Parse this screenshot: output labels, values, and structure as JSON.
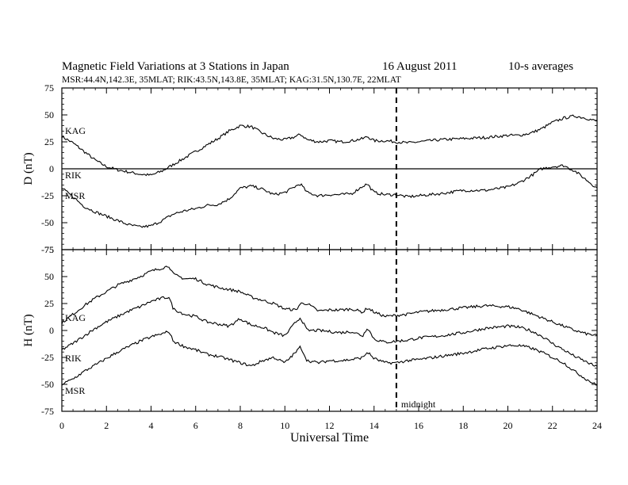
{
  "header": {
    "title": "Magnetic Field Variations at 3 Stations in Japan",
    "date": "16  August  2011",
    "averaging": "10-s averages",
    "stations": "MSR:44.4N,142.3E, 35MLAT;  RIK:43.5N,143.8E, 35MLAT;  KAG:31.5N,130.7E, 22MLAT"
  },
  "annotations": {
    "midnight_label": "midnight",
    "midnight_ut": 15
  },
  "chart_data": [
    {
      "type": "line",
      "panel": "top",
      "ylabel": "D (nT)",
      "ylim": [
        -75,
        75
      ],
      "yticks": [
        75,
        50,
        25,
        0,
        -25,
        -50,
        -75
      ],
      "zero_line": true,
      "series": [
        {
          "name": "KAG",
          "x": [
            0,
            0.5,
            1,
            1.5,
            2,
            2.5,
            3,
            3.5,
            4,
            4.5,
            5,
            5.5,
            6,
            6.5,
            7,
            7.5,
            8,
            8.5,
            9,
            9.5,
            10,
            10.5,
            10.7,
            11,
            11.5,
            12,
            12.5,
            13,
            13.5,
            13.7,
            14,
            14.5,
            15,
            15.5,
            16,
            17,
            18,
            19,
            20,
            20.5,
            21,
            21.5,
            22,
            22.5,
            23,
            23.5,
            24
          ],
          "values": [
            30,
            24,
            16,
            8,
            2,
            -1,
            -3,
            -5,
            -6,
            -2,
            4,
            10,
            16,
            22,
            28,
            35,
            40,
            39,
            33,
            28,
            27,
            30,
            32,
            27,
            25,
            26,
            25,
            26,
            28,
            30,
            26,
            26,
            25,
            24,
            25,
            27,
            28,
            29,
            31,
            31,
            33,
            37,
            43,
            47,
            49,
            47,
            44
          ]
        },
        {
          "name": "RIK",
          "x": [
            0,
            0.5,
            1,
            1.5,
            2,
            2.5,
            3,
            3.5,
            4,
            4.5,
            5,
            5.5,
            6,
            6.5,
            7,
            7.5,
            8,
            8.5,
            9,
            9.5,
            10,
            10.5,
            10.7,
            11,
            11.5,
            12,
            12.5,
            13,
            13.5,
            13.7,
            14,
            14.5,
            15,
            15.5,
            16,
            17,
            18,
            19,
            20,
            20.5,
            21,
            21.5,
            22,
            22.5,
            23,
            23.5,
            24
          ],
          "values": [
            -7,
            -8,
            -8,
            -8,
            -7,
            -7,
            -7,
            -6,
            -5,
            -5,
            -6,
            -6,
            -6,
            -6,
            -6,
            -6,
            -6,
            -6,
            -6,
            -6,
            -6,
            -6,
            -6,
            -6,
            -6,
            -6,
            -6,
            -6,
            -6,
            -6,
            -6,
            -6,
            -6,
            -6,
            -6,
            -6,
            -6,
            -6,
            -6,
            -6,
            -6,
            -5,
            -4,
            -3,
            -4,
            -5,
            -6
          ]
        },
        {
          "name": "MSR",
          "x": [
            0,
            0.5,
            1,
            1.5,
            2,
            2.5,
            3,
            3.5,
            4,
            4.5,
            5,
            5.5,
            6,
            6.5,
            7,
            7.5,
            8,
            8.5,
            9,
            9.5,
            10,
            10.5,
            10.7,
            11,
            11.5,
            12,
            12.5,
            13,
            13.5,
            13.7,
            14,
            14.5,
            15,
            15.5,
            16,
            17,
            18,
            19,
            20,
            20.5,
            21,
            21.5,
            22,
            22.5,
            23,
            23.5,
            24
          ],
          "values": [
            -18,
            -26,
            -35,
            -40,
            -44,
            -48,
            -52,
            -54,
            -53,
            -48,
            -42,
            -39,
            -37,
            -34,
            -33,
            -28,
            -18,
            -16,
            -19,
            -24,
            -22,
            -16,
            -14,
            -22,
            -25,
            -24,
            -24,
            -23,
            -16,
            -14,
            -22,
            -24,
            -24,
            -26,
            -25,
            -23,
            -20,
            -20,
            -17,
            -13,
            -7,
            0,
            2,
            3,
            -2,
            -10,
            -18
          ]
        }
      ]
    },
    {
      "type": "line",
      "panel": "bottom",
      "ylabel": "H (nT)",
      "xlabel": "Universal Time",
      "ylim": [
        -75,
        75
      ],
      "yticks": [
        75,
        50,
        25,
        0,
        -25,
        -50,
        -75
      ],
      "xlim": [
        0,
        24
      ],
      "xticks": [
        0,
        2,
        4,
        6,
        8,
        10,
        12,
        14,
        16,
        18,
        20,
        22,
        24
      ],
      "series": [
        {
          "name": "KAG",
          "x": [
            0,
            0.5,
            1,
            1.5,
            2,
            2.5,
            3,
            3.5,
            4,
            4.5,
            4.8,
            5,
            5.5,
            6,
            6.5,
            7,
            7.5,
            8,
            8.5,
            9,
            9.5,
            10,
            10.5,
            10.7,
            11,
            11.5,
            12,
            12.5,
            13,
            13.5,
            13.7,
            14,
            14.5,
            15,
            15.5,
            16,
            17,
            18,
            19,
            20,
            20.5,
            21,
            21.5,
            22,
            22.5,
            23,
            23.5,
            24
          ],
          "values": [
            7,
            15,
            23,
            30,
            36,
            42,
            46,
            50,
            55,
            58,
            60,
            52,
            48,
            48,
            43,
            40,
            38,
            36,
            31,
            28,
            25,
            20,
            19,
            25,
            25,
            18,
            19,
            19,
            20,
            17,
            21,
            17,
            13,
            14,
            15,
            17,
            19,
            21,
            23,
            22,
            20,
            16,
            12,
            8,
            4,
            0,
            -3,
            -5
          ]
        },
        {
          "name": "RIK",
          "x": [
            0,
            0.5,
            1,
            1.5,
            2,
            2.5,
            3,
            3.5,
            4,
            4.5,
            4.8,
            5,
            5.5,
            6,
            6.5,
            7,
            7.5,
            8,
            8.5,
            9,
            9.5,
            10,
            10.5,
            10.7,
            11,
            11.5,
            12,
            12.5,
            13,
            13.5,
            13.7,
            14,
            14.5,
            15,
            15.5,
            16,
            17,
            18,
            19,
            20,
            20.5,
            21,
            21.5,
            22,
            22.5,
            23,
            23.5,
            24
          ],
          "values": [
            -18,
            -12,
            -5,
            2,
            8,
            13,
            18,
            22,
            27,
            30,
            31,
            20,
            15,
            13,
            8,
            6,
            4,
            11,
            5,
            3,
            -2,
            -5,
            8,
            12,
            0,
            0,
            -1,
            -2,
            -1,
            -5,
            3,
            -8,
            -11,
            -10,
            -9,
            -7,
            -5,
            -2,
            2,
            4,
            3,
            0,
            -5,
            -12,
            -18,
            -24,
            -29,
            -34
          ]
        },
        {
          "name": "MSR",
          "x": [
            0,
            0.5,
            1,
            1.5,
            2,
            2.5,
            3,
            3.5,
            4,
            4.5,
            4.8,
            5,
            5.5,
            6,
            6.5,
            7,
            7.5,
            8,
            8.5,
            9,
            9.5,
            10,
            10.5,
            10.7,
            11,
            11.5,
            12,
            12.5,
            13,
            13.5,
            13.7,
            14,
            14.5,
            15,
            15.5,
            16,
            17,
            18,
            19,
            20,
            20.5,
            21,
            21.5,
            22,
            22.5,
            23,
            23.5,
            24
          ],
          "values": [
            -50,
            -45,
            -38,
            -32,
            -26,
            -20,
            -15,
            -10,
            -6,
            -3,
            -1,
            -10,
            -15,
            -18,
            -22,
            -24,
            -27,
            -30,
            -33,
            -28,
            -25,
            -30,
            -20,
            -15,
            -28,
            -30,
            -28,
            -28,
            -27,
            -25,
            -20,
            -26,
            -30,
            -30,
            -28,
            -27,
            -24,
            -21,
            -17,
            -14,
            -14,
            -16,
            -20,
            -25,
            -30,
            -38,
            -45,
            -51
          ]
        }
      ]
    }
  ]
}
